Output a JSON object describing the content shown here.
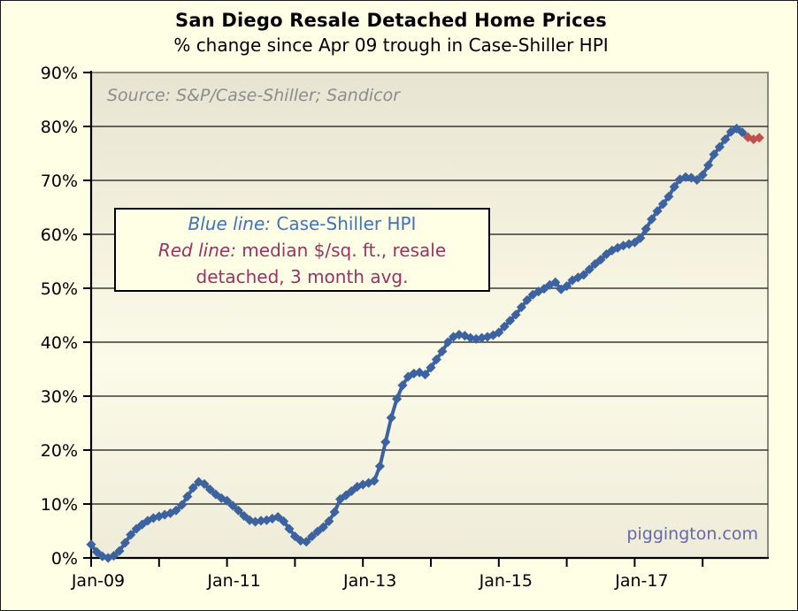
{
  "title": "San Diego Resale Detached Home Prices",
  "subtitle": "% change since Apr 09 trough in Case-Shiller HPI",
  "source_note": "Source: S&P/Case-Shiller; Sandicor",
  "watermark": "piggington.com",
  "legend": {
    "blue_label": "Blue line:",
    "blue_value": "Case-Shiller HPI",
    "red_label": "Red line:",
    "red_value": "median $/sq. ft., resale detached, 3 month avg."
  },
  "colors": {
    "page_background": "#ffffe6",
    "plot_gradient_top": "#e8e4d2",
    "plot_gradient_mid": "#fcfae8",
    "plot_gradient_bottom": "#eeebd9",
    "plot_border": "#8b897e",
    "gridline": "#141414",
    "axis": "#000000",
    "blue_series": "#3c63a0",
    "red_series": "#c0504d",
    "legend_blue_text": "#3e74bc",
    "legend_red_text": "#9d3164",
    "source_text": "#8c8c8c",
    "watermark_text": "#6667af"
  },
  "chart_data": {
    "type": "line",
    "title": "San Diego Resale Detached Home Prices",
    "subtitle": "% change since Apr 09 trough in Case-Shiller HPI",
    "x_start": "2009-01",
    "frequency": "monthly",
    "x_tick_labels": [
      "Jan-09",
      "Jan-11",
      "Jan-13",
      "Jan-15",
      "Jan-17"
    ],
    "x_tick_label_year_step": 2,
    "y_tick_labels": [
      "0%",
      "10%",
      "20%",
      "30%",
      "40%",
      "50%",
      "60%",
      "70%",
      "80%",
      "90%"
    ],
    "ylim": [
      0,
      90
    ],
    "ylabel": "% change since Apr 09 trough in Case-Shiller HPI",
    "grid": true,
    "legend_position": "inside-top-left-box",
    "series": [
      {
        "name": "Case-Shiller HPI",
        "color": "#3c63a0",
        "marker": "diamond",
        "start_month_index": 0,
        "values": [
          2.5,
          1.1,
          0.3,
          0.0,
          0.4,
          1.3,
          2.8,
          4.3,
          5.4,
          6.2,
          6.9,
          7.4,
          7.7,
          8.0,
          8.3,
          8.8,
          9.8,
          11.4,
          13.0,
          14.1,
          13.7,
          12.7,
          11.8,
          11.1,
          10.6,
          9.7,
          8.8,
          7.8,
          7.0,
          6.7,
          6.9,
          7.0,
          7.3,
          7.6,
          6.8,
          5.4,
          4.0,
          3.2,
          3.0,
          4.0,
          4.9,
          5.7,
          6.8,
          8.5,
          10.9,
          11.6,
          12.4,
          13.2,
          13.6,
          13.9,
          14.3,
          17.0,
          21.5,
          26.0,
          29.5,
          32.0,
          33.6,
          34.2,
          34.4,
          34.0,
          35.3,
          36.8,
          38.3,
          40.0,
          41.0,
          41.4,
          41.2,
          40.8,
          40.6,
          40.8,
          41.0,
          41.3,
          41.8,
          42.9,
          44.0,
          45.1,
          46.5,
          47.8,
          48.8,
          49.4,
          49.9,
          50.6,
          51.1,
          49.8,
          50.4,
          51.5,
          52.0,
          52.5,
          53.5,
          54.5,
          55.3,
          56.3,
          57.0,
          57.5,
          57.9,
          58.2,
          58.5,
          59.3,
          61.0,
          62.8,
          64.3,
          65.6,
          67.0,
          68.8,
          70.2,
          70.6,
          70.5,
          70.1,
          71.0,
          72.8,
          74.8,
          76.2,
          77.6,
          79.0,
          79.6,
          78.9,
          78.0
        ]
      },
      {
        "name": "Median $/sq. ft., resale detached, 3 month avg.",
        "color": "#c0504d",
        "marker": "diamond",
        "start_month_index": 116,
        "values": [
          78.0,
          77.6,
          77.9
        ]
      }
    ]
  }
}
